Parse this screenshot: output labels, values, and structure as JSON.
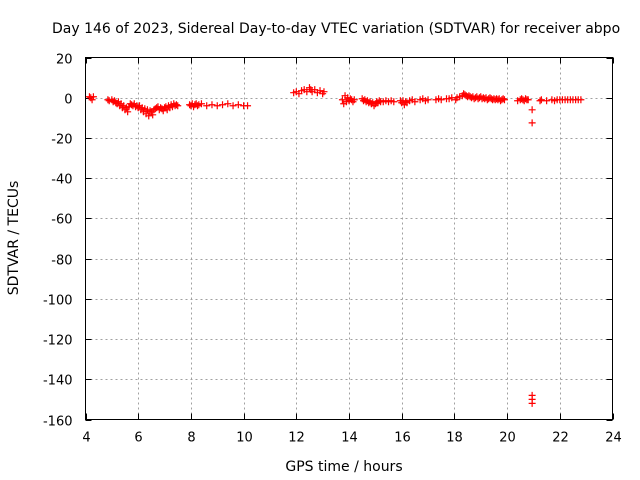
{
  "chart_data": {
    "type": "scatter",
    "title": "Day 146 of 2023, Sidereal Day-to-day VTEC variation (SDTVAR) for receiver abpo",
    "xlabel": "GPS time / hours",
    "ylabel": "SDTVAR / TECUs",
    "xlim": [
      4,
      24
    ],
    "ylim": [
      -160,
      20
    ],
    "xticks": [
      4,
      6,
      8,
      10,
      12,
      14,
      16,
      18,
      20,
      22,
      24
    ],
    "yticks": [
      20,
      0,
      -20,
      -40,
      -60,
      -80,
      -100,
      -120,
      -140,
      -160
    ],
    "grid": true,
    "marker": "+",
    "series": [
      {
        "name": "SDTVAR",
        "color": "#ff0000",
        "points": [
          [
            4.15,
            0.5
          ],
          [
            4.2,
            0.0
          ],
          [
            4.25,
            -1.0
          ],
          [
            4.3,
            0.5
          ],
          [
            4.85,
            -1.0
          ],
          [
            4.9,
            -1.5
          ],
          [
            5.0,
            -1.0
          ],
          [
            5.05,
            -2.0
          ],
          [
            5.1,
            -1.5
          ],
          [
            5.15,
            -2.5
          ],
          [
            5.2,
            -3.0
          ],
          [
            5.25,
            -2.0
          ],
          [
            5.3,
            -4.0
          ],
          [
            5.35,
            -3.0
          ],
          [
            5.4,
            -5.0
          ],
          [
            5.45,
            -4.0
          ],
          [
            5.5,
            -6.0
          ],
          [
            5.55,
            -5.0
          ],
          [
            5.6,
            -7.0
          ],
          [
            5.65,
            -4.5
          ],
          [
            5.7,
            -3.0
          ],
          [
            5.75,
            -3.5
          ],
          [
            5.8,
            -4.0
          ],
          [
            5.85,
            -3.0
          ],
          [
            5.9,
            -4.5
          ],
          [
            5.95,
            -4.0
          ],
          [
            6.0,
            -5.0
          ],
          [
            6.05,
            -4.0
          ],
          [
            6.1,
            -6.0
          ],
          [
            6.15,
            -5.0
          ],
          [
            6.2,
            -7.0
          ],
          [
            6.25,
            -5.5
          ],
          [
            6.3,
            -8.0
          ],
          [
            6.35,
            -6.0
          ],
          [
            6.4,
            -9.0
          ],
          [
            6.45,
            -6.5
          ],
          [
            6.5,
            -7.0
          ],
          [
            6.55,
            -8.5
          ],
          [
            6.6,
            -6.0
          ],
          [
            6.65,
            -5.5
          ],
          [
            6.7,
            -5.0
          ],
          [
            6.75,
            -4.5
          ],
          [
            6.8,
            -6.0
          ],
          [
            6.85,
            -5.0
          ],
          [
            6.9,
            -5.5
          ],
          [
            6.95,
            -6.5
          ],
          [
            7.0,
            -5.0
          ],
          [
            7.05,
            -4.5
          ],
          [
            7.1,
            -6.0
          ],
          [
            7.15,
            -4.0
          ],
          [
            7.2,
            -5.0
          ],
          [
            7.25,
            -3.5
          ],
          [
            7.3,
            -4.5
          ],
          [
            7.35,
            -3.0
          ],
          [
            7.4,
            -4.0
          ],
          [
            7.45,
            -3.5
          ],
          [
            7.5,
            -4.0
          ],
          [
            7.95,
            -3.5
          ],
          [
            8.0,
            -4.0
          ],
          [
            8.05,
            -3.0
          ],
          [
            8.1,
            -4.5
          ],
          [
            8.15,
            -3.5
          ],
          [
            8.2,
            -3.0
          ],
          [
            8.25,
            -4.0
          ],
          [
            8.3,
            -3.5
          ],
          [
            8.4,
            -3.0
          ],
          [
            8.6,
            -4.0
          ],
          [
            8.8,
            -3.5
          ],
          [
            9.0,
            -4.0
          ],
          [
            9.2,
            -3.5
          ],
          [
            9.4,
            -3.0
          ],
          [
            9.6,
            -4.0
          ],
          [
            9.8,
            -3.5
          ],
          [
            10.0,
            -4.0
          ],
          [
            10.15,
            -4.0
          ],
          [
            11.9,
            2.5
          ],
          [
            12.0,
            3.0
          ],
          [
            12.1,
            2.0
          ],
          [
            12.2,
            3.5
          ],
          [
            12.3,
            4.0
          ],
          [
            12.4,
            3.0
          ],
          [
            12.5,
            5.0
          ],
          [
            12.55,
            4.0
          ],
          [
            12.6,
            3.0
          ],
          [
            12.7,
            4.0
          ],
          [
            12.8,
            2.5
          ],
          [
            12.9,
            3.5
          ],
          [
            13.0,
            2.0
          ],
          [
            13.05,
            3.0
          ],
          [
            13.75,
            -1.0
          ],
          [
            13.8,
            -3.0
          ],
          [
            13.85,
            1.0
          ],
          [
            13.9,
            -2.0
          ],
          [
            13.95,
            0.0
          ],
          [
            14.0,
            -1.5
          ],
          [
            14.05,
            -0.5
          ],
          [
            14.1,
            -1.0
          ],
          [
            14.15,
            -2.0
          ],
          [
            14.2,
            -1.0
          ],
          [
            14.5,
            -0.5
          ],
          [
            14.55,
            -1.5
          ],
          [
            14.6,
            -1.0
          ],
          [
            14.65,
            -2.0
          ],
          [
            14.7,
            -1.5
          ],
          [
            14.75,
            -2.5
          ],
          [
            14.8,
            -2.0
          ],
          [
            14.85,
            -3.0
          ],
          [
            14.9,
            -2.5
          ],
          [
            14.95,
            -4.0
          ],
          [
            15.0,
            -3.0
          ],
          [
            15.05,
            -2.0
          ],
          [
            15.1,
            -2.5
          ],
          [
            15.15,
            -1.5
          ],
          [
            15.2,
            -2.0
          ],
          [
            15.3,
            -2.0
          ],
          [
            15.4,
            -1.5
          ],
          [
            15.5,
            -2.0
          ],
          [
            15.6,
            -1.5
          ],
          [
            15.7,
            -2.0
          ],
          [
            15.95,
            -1.5
          ],
          [
            16.0,
            -2.5
          ],
          [
            16.05,
            -1.5
          ],
          [
            16.1,
            -3.5
          ],
          [
            16.15,
            -2.0
          ],
          [
            16.2,
            -2.5
          ],
          [
            16.3,
            -1.5
          ],
          [
            16.4,
            -1.0
          ],
          [
            16.5,
            -2.0
          ],
          [
            16.7,
            -1.0
          ],
          [
            16.8,
            -0.5
          ],
          [
            16.9,
            -1.5
          ],
          [
            17.0,
            -1.0
          ],
          [
            17.3,
            -1.0
          ],
          [
            17.4,
            -0.5
          ],
          [
            17.5,
            -1.0
          ],
          [
            17.7,
            -0.5
          ],
          [
            17.8,
            -0.5
          ],
          [
            17.9,
            0.0
          ],
          [
            18.05,
            -1.0
          ],
          [
            18.1,
            0.0
          ],
          [
            18.2,
            0.5
          ],
          [
            18.3,
            1.0
          ],
          [
            18.35,
            2.0
          ],
          [
            18.4,
            1.5
          ],
          [
            18.45,
            1.0
          ],
          [
            18.5,
            0.5
          ],
          [
            18.55,
            1.0
          ],
          [
            18.6,
            0.5
          ],
          [
            18.65,
            0.0
          ],
          [
            18.7,
            0.5
          ],
          [
            18.75,
            -0.5
          ],
          [
            18.8,
            0.0
          ],
          [
            18.85,
            0.5
          ],
          [
            18.9,
            -0.5
          ],
          [
            18.95,
            0.0
          ],
          [
            19.0,
            0.5
          ],
          [
            19.05,
            -0.5
          ],
          [
            19.1,
            0.0
          ],
          [
            19.15,
            -0.5
          ],
          [
            19.2,
            0.0
          ],
          [
            19.25,
            -1.0
          ],
          [
            19.3,
            -0.5
          ],
          [
            19.35,
            0.0
          ],
          [
            19.4,
            -0.5
          ],
          [
            19.45,
            -1.0
          ],
          [
            19.5,
            -0.5
          ],
          [
            19.55,
            -1.0
          ],
          [
            19.6,
            -0.5
          ],
          [
            19.65,
            -1.0
          ],
          [
            19.7,
            -0.5
          ],
          [
            19.75,
            -1.5
          ],
          [
            19.8,
            -1.0
          ],
          [
            19.85,
            -0.5
          ],
          [
            19.9,
            -1.0
          ],
          [
            20.4,
            -1.5
          ],
          [
            20.5,
            -1.0
          ],
          [
            20.55,
            -0.5
          ],
          [
            20.6,
            -1.0
          ],
          [
            20.65,
            -1.5
          ],
          [
            20.7,
            -0.5
          ],
          [
            20.75,
            -1.0
          ],
          [
            20.8,
            -1.0
          ],
          [
            20.95,
            -6.0
          ],
          [
            20.95,
            -12.5
          ],
          [
            20.95,
            -148.0
          ],
          [
            20.95,
            -150.0
          ],
          [
            20.95,
            -152.0
          ],
          [
            21.25,
            -1.5
          ],
          [
            21.3,
            -1.0
          ],
          [
            21.5,
            -1.5
          ],
          [
            21.7,
            -1.0
          ],
          [
            21.8,
            -1.5
          ],
          [
            21.9,
            -1.0
          ],
          [
            22.0,
            -1.0
          ],
          [
            22.1,
            -1.0
          ],
          [
            22.2,
            -1.0
          ],
          [
            22.3,
            -1.0
          ],
          [
            22.4,
            -1.0
          ],
          [
            22.5,
            -1.0
          ],
          [
            22.6,
            -1.0
          ],
          [
            22.7,
            -1.0
          ],
          [
            22.8,
            -1.0
          ]
        ]
      }
    ]
  }
}
